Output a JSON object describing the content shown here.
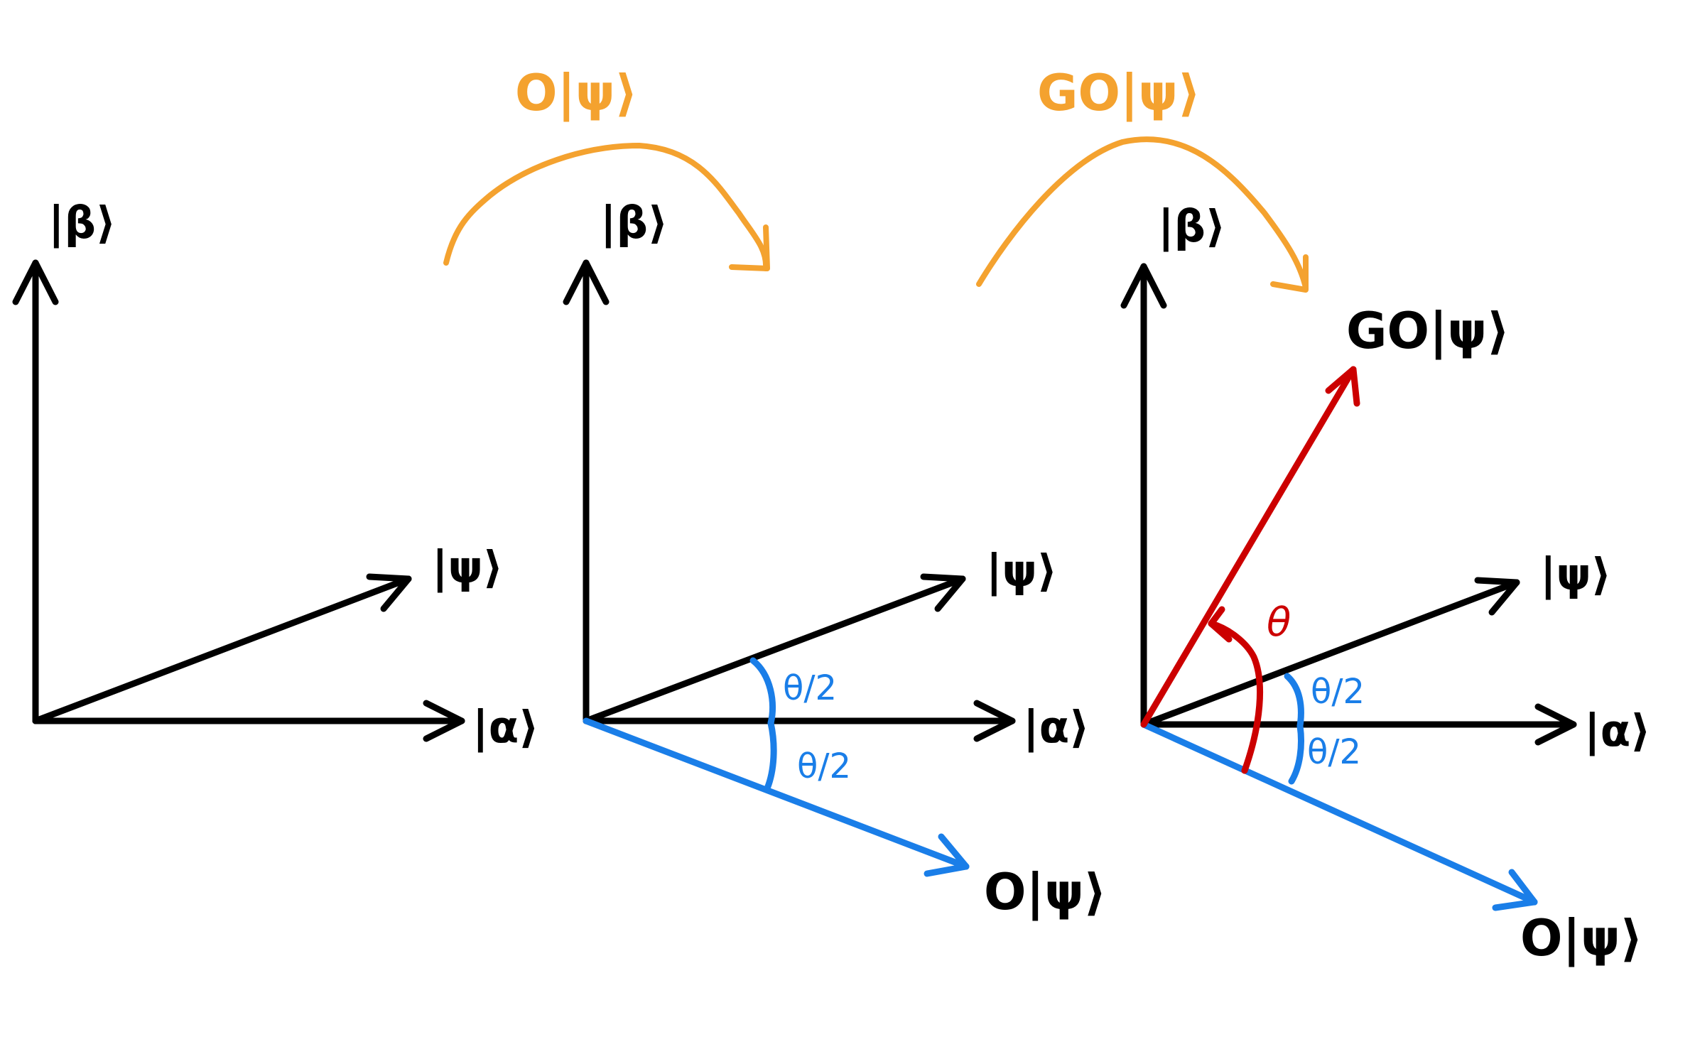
{
  "colors": {
    "axis": "#000000",
    "psi": "#000000",
    "oracle": "#1a7ee8",
    "grover": "#cc0000",
    "step_arrow": "#f4a22f",
    "angle_mark": "#1a7ee8"
  },
  "labels": {
    "beta": "|β⟩",
    "alpha": "|α⟩",
    "psi": "|ψ⟩",
    "o_psi": "O|ψ⟩",
    "go_psi": "GO|ψ⟩",
    "half_theta": "θ/2",
    "theta": "θ"
  },
  "steps": {
    "step1_label": "O|ψ⟩",
    "step2_label": "GO|ψ⟩"
  },
  "panels": [
    {
      "name": "initial-state",
      "beta_label": "|β⟩",
      "alpha_label": "|α⟩",
      "psi_label": "|ψ⟩"
    },
    {
      "name": "after-oracle",
      "beta_label": "|β⟩",
      "alpha_label": "|α⟩",
      "psi_label": "|ψ⟩",
      "o_psi_label": "O|ψ⟩",
      "angle_upper": "θ/2",
      "angle_lower": "θ/2"
    },
    {
      "name": "after-grover",
      "beta_label": "|β⟩",
      "alpha_label": "|α⟩",
      "psi_label": "|ψ⟩",
      "o_psi_label": "O|ψ⟩",
      "go_psi_label": "GO|ψ⟩",
      "angle_upper": "θ/2",
      "angle_lower": "θ/2",
      "theta_label": "θ"
    }
  ]
}
